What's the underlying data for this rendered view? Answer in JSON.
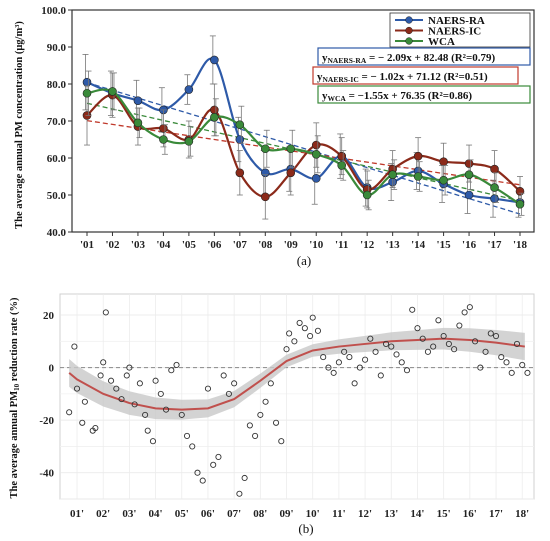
{
  "chart_data": [
    {
      "type": "line",
      "ylabel": "The average annual PM concentration (μg/m³)",
      "caption": "(a)",
      "ylim": [
        40,
        100
      ],
      "yticks": [
        "40.0",
        "50.0",
        "60.0",
        "70.0",
        "80.0",
        "90.0",
        "100.0"
      ],
      "categories": [
        "'01",
        "'02",
        "'03",
        "'04",
        "'05",
        "'06",
        "'07",
        "'08",
        "'09",
        "'10",
        "'11",
        "'12",
        "'13",
        "'14",
        "'15",
        "'16",
        "'17",
        "'18"
      ],
      "legend_position": "top-right",
      "series": [
        {
          "name": "NAERS-RA",
          "color": "#2e5aa8",
          "values": [
            80.5,
            77.5,
            75.5,
            73.0,
            78.5,
            86.5,
            65.0,
            56.0,
            57.0,
            54.5,
            60.5,
            52.0,
            53.5,
            56.5,
            53.0,
            50.0,
            49.0,
            48.0
          ],
          "errors": [
            7.5,
            6,
            5.5,
            6,
            4,
            6.5,
            6,
            6,
            6,
            7,
            6,
            5,
            5,
            5,
            5,
            5,
            5,
            4
          ]
        },
        {
          "name": "NAERS-IC",
          "color": "#8b2a1a",
          "values": [
            71.5,
            77.0,
            68.5,
            68.0,
            65.0,
            73.0,
            56.0,
            49.5,
            56.0,
            63.5,
            60.5,
            51.5,
            57.0,
            60.5,
            59.0,
            58.5,
            57.0,
            51.0
          ],
          "errors": [
            8,
            6,
            5,
            5,
            5,
            7,
            6,
            6,
            6,
            6,
            5,
            5,
            5,
            5,
            5,
            5,
            5,
            4
          ]
        },
        {
          "name": "WCA",
          "color": "#3a8a3a",
          "values": [
            77.5,
            78.0,
            69.5,
            65.0,
            64.5,
            71.0,
            69.0,
            62.5,
            62.5,
            61.0,
            58.0,
            50.0,
            55.5,
            55.0,
            54.0,
            55.5,
            52.0,
            47.5
          ],
          "errors": [
            6,
            5,
            4,
            4,
            4,
            5,
            5,
            5,
            5,
            5,
            4,
            4,
            4,
            4,
            4,
            4,
            4,
            3
          ]
        }
      ],
      "trendlines": [
        {
          "label": "y",
          "sub": "NAERS-RA",
          "rest": " = − 2.09x + 82.48 (R²=0.79)",
          "slope": -2.09,
          "intercept": 82.48,
          "color": "#2e5aa8"
        },
        {
          "label": "y",
          "sub": "NAERS-IC",
          "rest": " = − 1.02x + 71.12 (R²=0.51)",
          "slope": -1.02,
          "intercept": 71.12,
          "color": "#c0392b"
        },
        {
          "label": "y",
          "sub": "WCA",
          "rest": " = −1.55x + 76.35 (R²=0.86)",
          "slope": -1.55,
          "intercept": 76.35,
          "color": "#3a8a3a"
        }
      ]
    },
    {
      "type": "scatter",
      "ylabel_prefix": "The average annual PM",
      "ylabel_sub": "10",
      "ylabel_suffix": " reduction rate (%)",
      "caption": "(b)",
      "ylim": [
        -50,
        28
      ],
      "yticks": [
        20,
        0,
        -20,
        -40
      ],
      "xticks": [
        "01'",
        "02'",
        "03'",
        "04'",
        "05'",
        "06'",
        "07'",
        "08'",
        "09'",
        "10'",
        "11'",
        "12'",
        "13'",
        "14'",
        "15'",
        "16'",
        "17'",
        "18'"
      ],
      "xlim": [
        0.35,
        18.45
      ],
      "smooth": [
        [
          0.7,
          -2
        ],
        [
          1,
          -4.5
        ],
        [
          2,
          -10
        ],
        [
          3,
          -13.5
        ],
        [
          4,
          -15.5
        ],
        [
          5,
          -16
        ],
        [
          6,
          -15.5
        ],
        [
          7,
          -12
        ],
        [
          8,
          -5
        ],
        [
          9,
          2.5
        ],
        [
          10,
          6.5
        ],
        [
          11,
          8
        ],
        [
          12,
          9
        ],
        [
          13,
          10
        ],
        [
          14,
          10.5
        ],
        [
          15,
          11
        ],
        [
          16,
          10.5
        ],
        [
          17,
          9.5
        ],
        [
          18.1,
          8
        ]
      ],
      "points": [
        [
          0.7,
          -17
        ],
        [
          0.9,
          8
        ],
        [
          1.0,
          -8
        ],
        [
          1.2,
          -21
        ],
        [
          1.3,
          -13
        ],
        [
          1.6,
          -24
        ],
        [
          1.7,
          -23
        ],
        [
          1.9,
          -3
        ],
        [
          2.0,
          2
        ],
        [
          2.1,
          21
        ],
        [
          2.3,
          -5
        ],
        [
          2.5,
          -8
        ],
        [
          2.7,
          -12
        ],
        [
          2.9,
          -3
        ],
        [
          3.0,
          0
        ],
        [
          3.2,
          -14
        ],
        [
          3.4,
          -6
        ],
        [
          3.6,
          -18
        ],
        [
          3.7,
          -24
        ],
        [
          3.9,
          -28
        ],
        [
          4.0,
          -5
        ],
        [
          4.2,
          -10
        ],
        [
          4.4,
          -16
        ],
        [
          4.6,
          -1
        ],
        [
          4.8,
          1
        ],
        [
          5.0,
          -18
        ],
        [
          5.2,
          -26
        ],
        [
          5.4,
          -30
        ],
        [
          5.6,
          -40
        ],
        [
          5.8,
          -43
        ],
        [
          6.0,
          -8
        ],
        [
          6.2,
          -37
        ],
        [
          6.4,
          -34
        ],
        [
          6.6,
          -3
        ],
        [
          6.8,
          -10
        ],
        [
          7.0,
          -6
        ],
        [
          7.2,
          -48
        ],
        [
          7.4,
          -42
        ],
        [
          7.6,
          -22
        ],
        [
          7.8,
          -26
        ],
        [
          8.0,
          -18
        ],
        [
          8.2,
          -13
        ],
        [
          8.4,
          -6
        ],
        [
          8.6,
          -21
        ],
        [
          8.8,
          -28
        ],
        [
          9.0,
          7
        ],
        [
          9.1,
          13
        ],
        [
          9.3,
          10
        ],
        [
          9.5,
          17
        ],
        [
          9.7,
          15
        ],
        [
          9.9,
          12
        ],
        [
          10.0,
          19
        ],
        [
          10.2,
          14
        ],
        [
          10.4,
          4
        ],
        [
          10.6,
          0
        ],
        [
          10.8,
          -2
        ],
        [
          11.0,
          2
        ],
        [
          11.2,
          6
        ],
        [
          11.4,
          4
        ],
        [
          11.6,
          -6
        ],
        [
          11.8,
          0
        ],
        [
          12.0,
          3
        ],
        [
          12.2,
          11
        ],
        [
          12.4,
          6
        ],
        [
          12.6,
          -3
        ],
        [
          12.8,
          9
        ],
        [
          13.0,
          8
        ],
        [
          13.2,
          5
        ],
        [
          13.4,
          2
        ],
        [
          13.6,
          -1
        ],
        [
          13.8,
          22
        ],
        [
          14.0,
          15
        ],
        [
          14.2,
          11
        ],
        [
          14.4,
          6
        ],
        [
          14.6,
          8
        ],
        [
          14.8,
          18
        ],
        [
          15.0,
          12
        ],
        [
          15.2,
          9
        ],
        [
          15.4,
          7
        ],
        [
          15.6,
          16
        ],
        [
          15.8,
          21
        ],
        [
          16.0,
          23
        ],
        [
          16.2,
          10
        ],
        [
          16.4,
          0
        ],
        [
          16.6,
          6
        ],
        [
          16.8,
          13
        ],
        [
          17.0,
          12
        ],
        [
          17.2,
          4
        ],
        [
          17.4,
          2
        ],
        [
          17.6,
          -2
        ],
        [
          17.8,
          9
        ],
        [
          18.0,
          1
        ],
        [
          18.2,
          -2
        ]
      ]
    }
  ]
}
